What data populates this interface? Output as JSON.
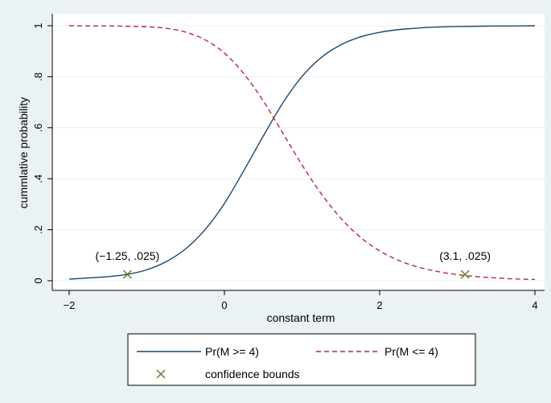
{
  "chart_data": {
    "type": "line",
    "title": "",
    "xlabel": "constant term",
    "ylabel": "cummlative probability",
    "xlim": [
      -2,
      4
    ],
    "ylim": [
      0,
      1
    ],
    "grid": "horizontal",
    "legend_placement": "bottom",
    "x_ticks": [
      -2,
      0,
      2,
      4
    ],
    "x_tick_labels": [
      "−2",
      "0",
      "2",
      "4"
    ],
    "y_ticks": [
      0,
      0.2,
      0.4,
      0.6,
      0.8,
      1
    ],
    "y_tick_labels": [
      "0",
      ".2",
      ".4",
      ".6",
      ".8",
      "1"
    ],
    "series": [
      {
        "name": "Pr(M >= 4)",
        "color": "#1a476f",
        "dash": "solid",
        "x": [
          -2.0,
          -1.75,
          -1.5,
          -1.25,
          -1.0,
          -0.75,
          -0.5,
          -0.25,
          0.0,
          0.25,
          0.5,
          0.75,
          1.0,
          1.25,
          1.5,
          1.75,
          2.0,
          2.25,
          2.5,
          2.75,
          3.0,
          3.25,
          3.5,
          3.75,
          4.0
        ],
        "y": [
          0.006,
          0.011,
          0.016,
          0.025,
          0.043,
          0.075,
          0.125,
          0.2,
          0.303,
          0.432,
          0.567,
          0.696,
          0.801,
          0.876,
          0.925,
          0.956,
          0.974,
          0.985,
          0.991,
          0.995,
          0.997,
          0.998,
          0.999,
          0.999,
          1.0
        ]
      },
      {
        "name": "Pr(M <= 4)",
        "color": "#b22d3a",
        "dash": "dashed",
        "x": [
          -2.0,
          -1.75,
          -1.5,
          -1.25,
          -1.0,
          -0.75,
          -0.5,
          -0.25,
          0.0,
          0.25,
          0.5,
          0.75,
          1.0,
          1.25,
          1.5,
          1.75,
          2.0,
          2.25,
          2.5,
          2.75,
          3.0,
          3.25,
          3.5,
          3.75,
          4.0
        ],
        "y": [
          1.0,
          0.999,
          0.999,
          0.998,
          0.996,
          0.99,
          0.975,
          0.945,
          0.893,
          0.812,
          0.705,
          0.58,
          0.454,
          0.34,
          0.245,
          0.171,
          0.117,
          0.079,
          0.053,
          0.036,
          0.024,
          0.016,
          0.011,
          0.007,
          0.005
        ]
      }
    ],
    "markers": {
      "name": "confidence bounds",
      "symbol": "×",
      "color": "#5a7f2b",
      "points": [
        {
          "x": -1.25,
          "y": 0.025,
          "label": "(−1.25, .025)"
        },
        {
          "x": 3.1,
          "y": 0.025,
          "label": "(3.1, .025)"
        }
      ]
    },
    "legend": [
      {
        "label": "Pr(M >= 4)",
        "kind": "line",
        "color": "#1a476f",
        "dash": "solid"
      },
      {
        "label": "Pr(M <= 4)",
        "kind": "line",
        "color": "#b22d3a",
        "dash": "dashed"
      },
      {
        "label": "confidence bounds",
        "kind": "marker",
        "color": "#5a7f2b"
      }
    ]
  }
}
